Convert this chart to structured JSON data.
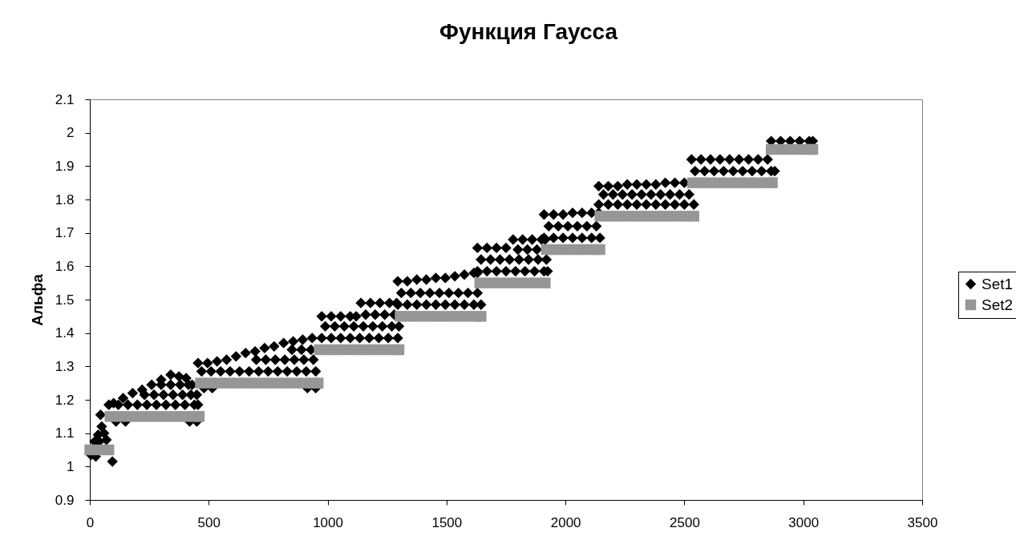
{
  "chart_data": {
    "type": "scatter",
    "title": "Функция Гаусса",
    "ylabel": "Альфа",
    "xlim": [
      0,
      3500
    ],
    "xticks": [
      0,
      500,
      1000,
      1500,
      2000,
      2500,
      3000,
      3500
    ],
    "ylim": [
      0.9,
      2.1
    ],
    "yticks": [
      0.9,
      1,
      1.1,
      1.2,
      1.3,
      1.4,
      1.5,
      1.6,
      1.7,
      1.8,
      1.9,
      2,
      2.1
    ],
    "grid": false,
    "legend": "right",
    "series": [
      {
        "name": "Set1",
        "color": "#000000",
        "marker": "diamond",
        "x": [
          5,
          25,
          20,
          35,
          45,
          50,
          60,
          70,
          40,
          95,
          100,
          140,
          180,
          220,
          260,
          300,
          340,
          375,
          405,
          430,
          450,
          80,
          120,
          160,
          200,
          240,
          280,
          320,
          360,
          400,
          440,
          455,
          230,
          270,
          310,
          350,
          390,
          425,
          300,
          340,
          380,
          415,
          110,
          150,
          420,
          450,
          455,
          495,
          535,
          575,
          615,
          655,
          695,
          735,
          775,
          815,
          855,
          895,
          935,
          470,
          510,
          550,
          590,
          630,
          670,
          710,
          750,
          790,
          830,
          870,
          910,
          950,
          700,
          740,
          780,
          820,
          860,
          900,
          940,
          850,
          890,
          930,
          480,
          515,
          915,
          950,
          975,
          1015,
          1055,
          1095,
          1120,
          1140,
          1180,
          1220,
          1260,
          1290,
          990,
          1030,
          1070,
          1110,
          1150,
          1190,
          1230,
          1270,
          1300,
          1160,
          1200,
          1240,
          1280,
          975,
          1015,
          1055,
          1095,
          1135,
          1175,
          1215,
          1255,
          1295,
          1295,
          1335,
          1375,
          1415,
          1455,
          1495,
          1535,
          1575,
          1615,
          1630,
          1310,
          1350,
          1390,
          1430,
          1470,
          1510,
          1550,
          1590,
          1630,
          1295,
          1335,
          1375,
          1415,
          1455,
          1495,
          1535,
          1575,
          1615,
          1645,
          1630,
          1670,
          1710,
          1750,
          1780,
          1820,
          1860,
          1900,
          1915,
          1645,
          1685,
          1725,
          1765,
          1805,
          1845,
          1885,
          1920,
          1800,
          1840,
          1880,
          1630,
          1670,
          1710,
          1750,
          1790,
          1830,
          1870,
          1910,
          1925,
          1910,
          1950,
          1990,
          2030,
          2070,
          2110,
          2140,
          1930,
          1970,
          2010,
          2050,
          2090,
          2130,
          1910,
          1950,
          1990,
          2030,
          2070,
          2110,
          2145,
          2140,
          2180,
          2220,
          2260,
          2300,
          2340,
          2380,
          2420,
          2460,
          2500,
          2160,
          2200,
          2240,
          2280,
          2320,
          2360,
          2400,
          2440,
          2480,
          2520,
          2140,
          2180,
          2220,
          2260,
          2300,
          2340,
          2380,
          2420,
          2460,
          2500,
          2540,
          2530,
          2570,
          2610,
          2650,
          2690,
          2730,
          2770,
          2810,
          2850,
          2545,
          2585,
          2625,
          2665,
          2705,
          2745,
          2785,
          2825,
          2865,
          2880,
          2865,
          2905,
          2945,
          2985,
          3025,
          3040
        ],
        "values": [
          1.035,
          1.03,
          1.075,
          1.095,
          1.155,
          1.12,
          1.1,
          1.08,
          1.075,
          1.015,
          1.19,
          1.205,
          1.22,
          1.23,
          1.245,
          1.26,
          1.275,
          1.27,
          1.265,
          1.245,
          1.215,
          1.185,
          1.185,
          1.185,
          1.185,
          1.185,
          1.185,
          1.185,
          1.185,
          1.185,
          1.185,
          1.185,
          1.215,
          1.215,
          1.215,
          1.215,
          1.215,
          1.215,
          1.245,
          1.245,
          1.245,
          1.245,
          1.135,
          1.135,
          1.135,
          1.135,
          1.31,
          1.31,
          1.315,
          1.32,
          1.33,
          1.34,
          1.345,
          1.355,
          1.36,
          1.37,
          1.375,
          1.38,
          1.385,
          1.285,
          1.285,
          1.285,
          1.285,
          1.285,
          1.285,
          1.285,
          1.285,
          1.285,
          1.285,
          1.285,
          1.285,
          1.285,
          1.32,
          1.32,
          1.32,
          1.32,
          1.32,
          1.32,
          1.32,
          1.35,
          1.35,
          1.35,
          1.235,
          1.235,
          1.235,
          1.235,
          1.45,
          1.45,
          1.45,
          1.45,
          1.45,
          1.49,
          1.49,
          1.49,
          1.49,
          1.49,
          1.42,
          1.42,
          1.42,
          1.42,
          1.42,
          1.42,
          1.42,
          1.42,
          1.42,
          1.455,
          1.455,
          1.455,
          1.455,
          1.385,
          1.385,
          1.385,
          1.385,
          1.385,
          1.385,
          1.385,
          1.385,
          1.385,
          1.555,
          1.555,
          1.56,
          1.56,
          1.565,
          1.565,
          1.57,
          1.575,
          1.58,
          1.58,
          1.52,
          1.52,
          1.52,
          1.52,
          1.52,
          1.52,
          1.52,
          1.52,
          1.52,
          1.485,
          1.485,
          1.485,
          1.485,
          1.485,
          1.485,
          1.485,
          1.485,
          1.485,
          1.485,
          1.655,
          1.655,
          1.655,
          1.655,
          1.68,
          1.68,
          1.68,
          1.68,
          1.68,
          1.62,
          1.62,
          1.62,
          1.62,
          1.62,
          1.62,
          1.62,
          1.62,
          1.65,
          1.65,
          1.65,
          1.585,
          1.585,
          1.585,
          1.585,
          1.585,
          1.585,
          1.585,
          1.585,
          1.585,
          1.755,
          1.755,
          1.755,
          1.76,
          1.76,
          1.76,
          1.76,
          1.72,
          1.72,
          1.72,
          1.72,
          1.72,
          1.72,
          1.685,
          1.685,
          1.685,
          1.685,
          1.685,
          1.685,
          1.685,
          1.84,
          1.84,
          1.84,
          1.845,
          1.845,
          1.845,
          1.845,
          1.85,
          1.85,
          1.85,
          1.815,
          1.815,
          1.815,
          1.815,
          1.815,
          1.815,
          1.815,
          1.815,
          1.815,
          1.815,
          1.785,
          1.785,
          1.785,
          1.785,
          1.785,
          1.785,
          1.785,
          1.785,
          1.785,
          1.785,
          1.785,
          1.92,
          1.92,
          1.92,
          1.92,
          1.92,
          1.92,
          1.92,
          1.92,
          1.92,
          1.885,
          1.885,
          1.885,
          1.885,
          1.885,
          1.885,
          1.885,
          1.885,
          1.885,
          1.885,
          1.975,
          1.975,
          1.975,
          1.975,
          1.975,
          1.975
        ]
      },
      {
        "name": "Set2",
        "color": "#969696",
        "marker": "square",
        "x": [
          0,
          40,
          80,
          85,
          125,
          165,
          205,
          245,
          285,
          325,
          365,
          405,
          445,
          460,
          465,
          505,
          545,
          585,
          625,
          665,
          705,
          745,
          785,
          825,
          865,
          905,
          945,
          960,
          965,
          1005,
          1045,
          1085,
          1125,
          1165,
          1205,
          1245,
          1285,
          1300,
          1305,
          1345,
          1385,
          1425,
          1465,
          1505,
          1545,
          1585,
          1625,
          1645,
          1640,
          1680,
          1720,
          1760,
          1800,
          1840,
          1880,
          1915,
          1920,
          1960,
          2000,
          2040,
          2080,
          2120,
          2145,
          2145,
          2185,
          2225,
          2265,
          2305,
          2345,
          2385,
          2425,
          2465,
          2505,
          2540,
          2535,
          2575,
          2615,
          2655,
          2695,
          2735,
          2775,
          2815,
          2855,
          2870,
          2865,
          2905,
          2945,
          2985,
          3025,
          3040
        ],
        "values": [
          1.05,
          1.05,
          1.05,
          1.15,
          1.15,
          1.15,
          1.15,
          1.15,
          1.15,
          1.15,
          1.15,
          1.15,
          1.15,
          1.15,
          1.25,
          1.25,
          1.25,
          1.25,
          1.25,
          1.25,
          1.25,
          1.25,
          1.25,
          1.25,
          1.25,
          1.25,
          1.25,
          1.25,
          1.35,
          1.35,
          1.35,
          1.35,
          1.35,
          1.35,
          1.35,
          1.35,
          1.35,
          1.35,
          1.45,
          1.45,
          1.45,
          1.45,
          1.45,
          1.45,
          1.45,
          1.45,
          1.45,
          1.45,
          1.55,
          1.55,
          1.55,
          1.55,
          1.55,
          1.55,
          1.55,
          1.55,
          1.65,
          1.65,
          1.65,
          1.65,
          1.65,
          1.65,
          1.65,
          1.75,
          1.75,
          1.75,
          1.75,
          1.75,
          1.75,
          1.75,
          1.75,
          1.75,
          1.75,
          1.75,
          1.85,
          1.85,
          1.85,
          1.85,
          1.85,
          1.85,
          1.85,
          1.85,
          1.85,
          1.85,
          1.95,
          1.95,
          1.95,
          1.95,
          1.95,
          1.95
        ]
      }
    ]
  }
}
